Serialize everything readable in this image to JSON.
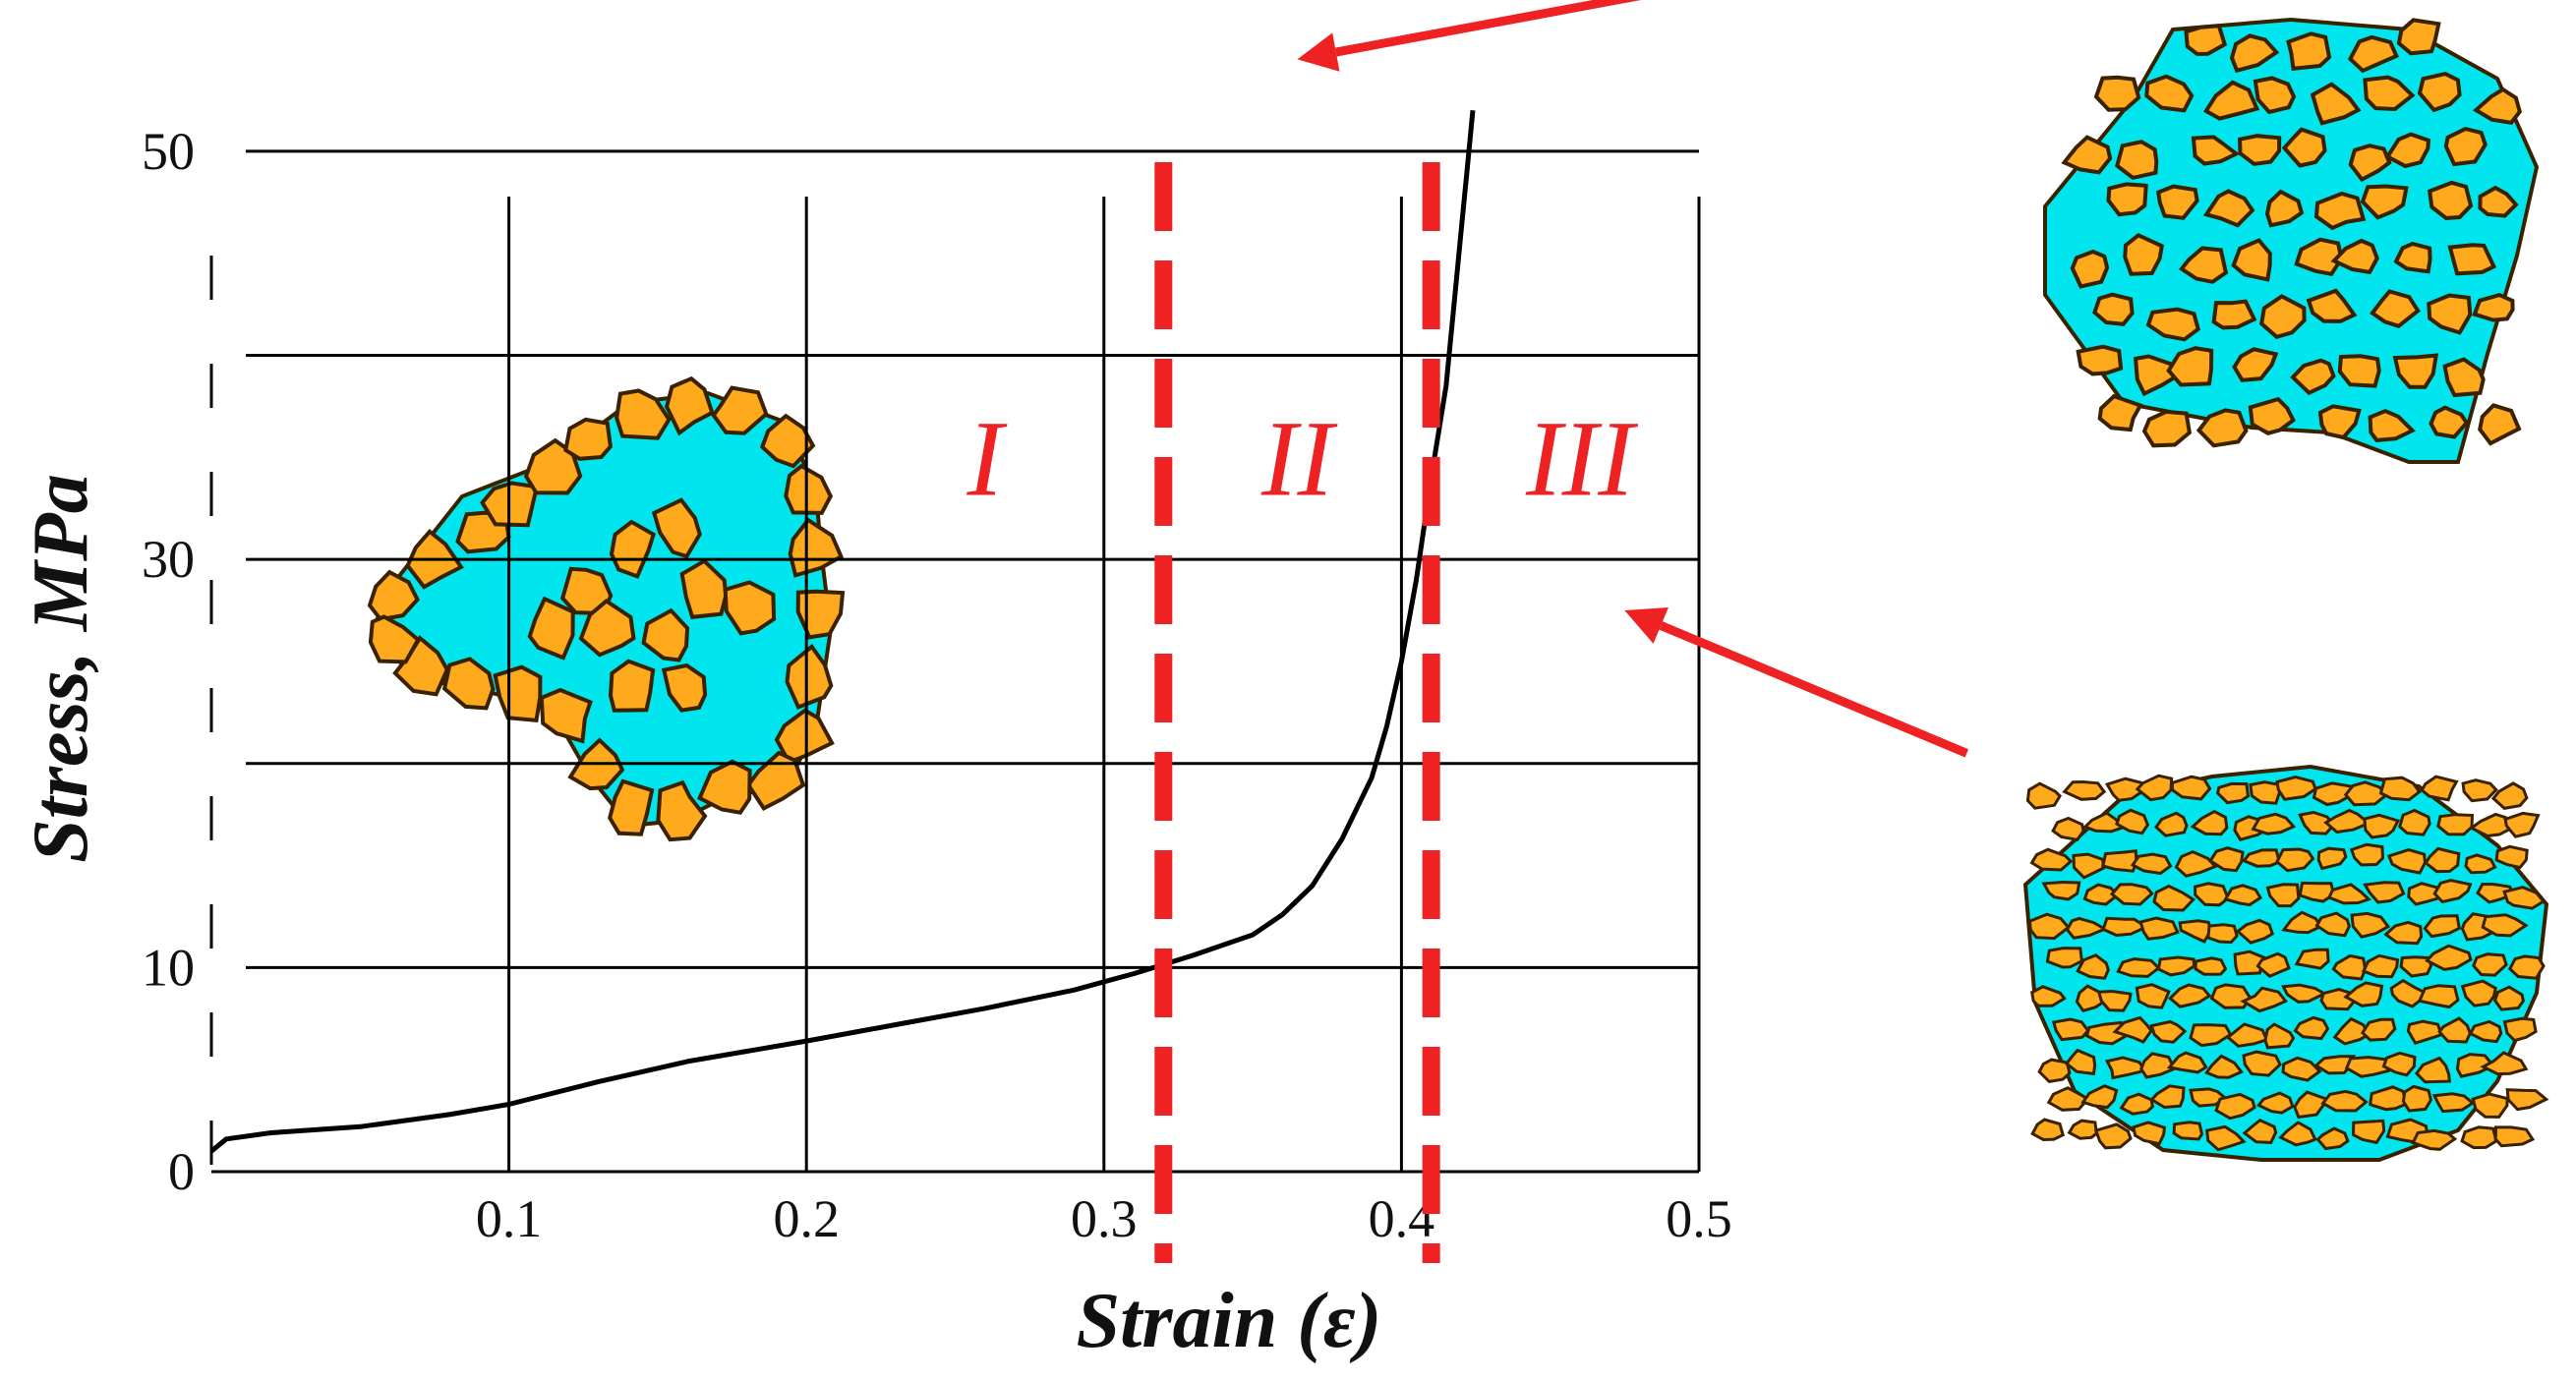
{
  "chart_data": {
    "type": "line",
    "xlabel": "Strain (ε)",
    "ylabel": "Stress, MPa",
    "xlim": [
      0,
      0.5
    ],
    "ylim": [
      0,
      55
    ],
    "x_ticks": [
      {
        "value": 0.1,
        "label": "0.1"
      },
      {
        "value": 0.2,
        "label": "0.2"
      },
      {
        "value": 0.3,
        "label": "0.3"
      },
      {
        "value": 0.4,
        "label": "0.4"
      },
      {
        "value": 0.5,
        "label": "0.5"
      }
    ],
    "y_ticks": [
      {
        "value": 0,
        "label": "0"
      },
      {
        "value": 10,
        "label": "10"
      },
      {
        "value": 30,
        "label": "30"
      },
      {
        "value": 50,
        "label": "50"
      }
    ],
    "grid": true,
    "gridlines_x": [
      0.1,
      0.2,
      0.3,
      0.4,
      0.5
    ],
    "gridlines_y": [
      10,
      20,
      30,
      40,
      50
    ],
    "series": [
      {
        "color": "#000000",
        "x": [
          0.0,
          0.005,
          0.02,
          0.05,
          0.08,
          0.1,
          0.13,
          0.16,
          0.2,
          0.23,
          0.26,
          0.29,
          0.31,
          0.33,
          0.35,
          0.36,
          0.37,
          0.38,
          0.39,
          0.395,
          0.4,
          0.405,
          0.41,
          0.415,
          0.418,
          0.42,
          0.422,
          0.424
        ],
        "y": [
          1.0,
          1.6,
          1.9,
          2.2,
          2.8,
          3.3,
          4.4,
          5.4,
          6.4,
          7.2,
          8.0,
          8.9,
          9.7,
          10.6,
          11.6,
          12.6,
          14.0,
          16.3,
          19.3,
          21.8,
          25.0,
          29.0,
          34.0,
          38.5,
          43.0,
          46.0,
          49.0,
          52.0
        ]
      }
    ],
    "zone_boundaries": [
      0.32,
      0.41
    ],
    "zone_color": "#ee2222",
    "zones": [
      {
        "label": "I",
        "x": 0.26
      },
      {
        "label": "II",
        "x": 0.365
      },
      {
        "label": "III",
        "x": 0.46
      }
    ],
    "annotations": [
      {
        "name": "arrow-to-zone-II",
        "color": "#ee2222",
        "from_x": 0.605,
        "from_y": 61.0,
        "to_x": 0.365,
        "to_y": 54.5
      },
      {
        "name": "arrow-to-zone-III",
        "color": "#ee2222",
        "from_x": 0.59,
        "from_y": 20.5,
        "to_x": 0.475,
        "to_y": 27.5
      }
    ],
    "particle_colors": {
      "grain": "#ffaa1d",
      "pore": "#00e5ee",
      "outline": "#3a2200"
    }
  }
}
